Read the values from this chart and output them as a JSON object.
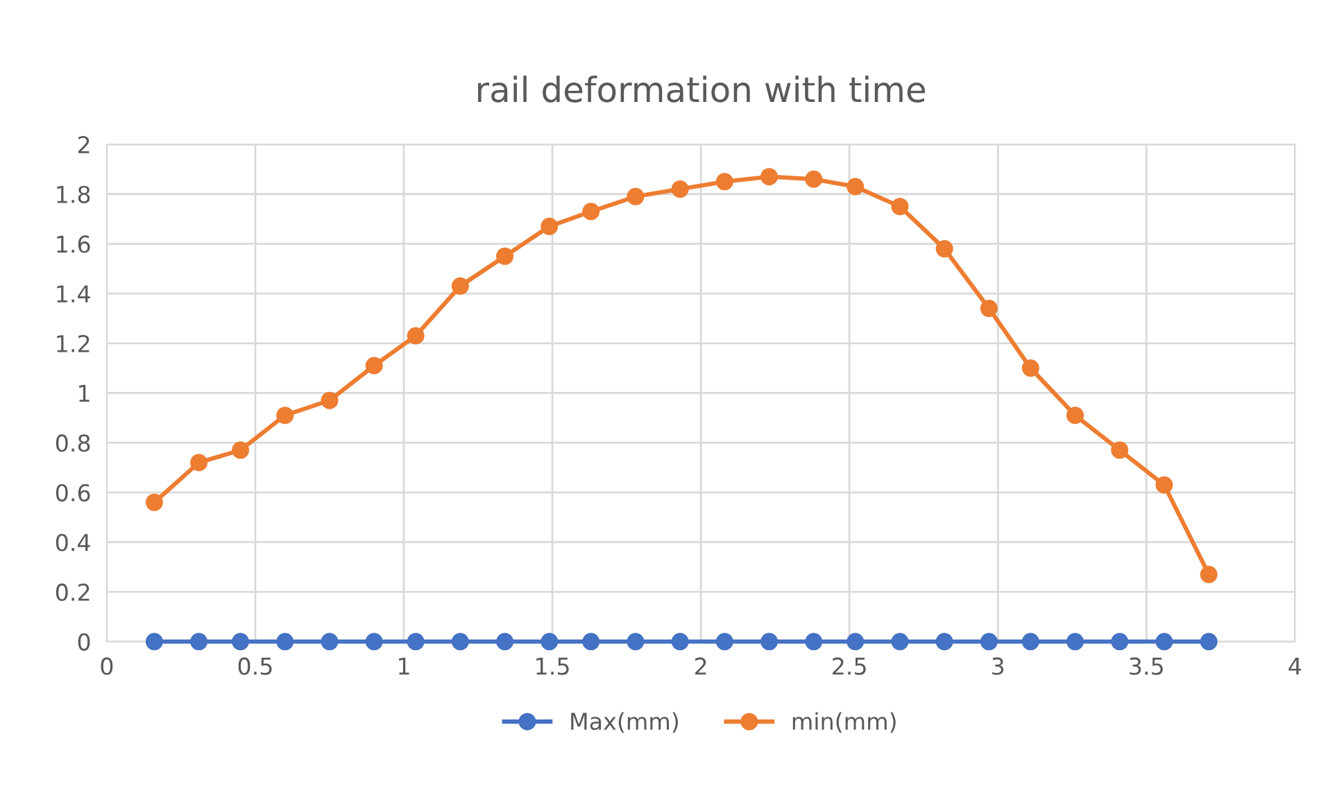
{
  "chart_data": {
    "type": "line",
    "title": "rail deformation with time",
    "x": [
      0.16,
      0.31,
      0.45,
      0.6,
      0.75,
      0.9,
      1.04,
      1.19,
      1.34,
      1.49,
      1.63,
      1.78,
      1.93,
      2.08,
      2.23,
      2.38,
      2.52,
      2.67,
      2.82,
      2.97,
      3.11,
      3.26,
      3.41,
      3.56,
      3.71
    ],
    "series": [
      {
        "name": "Max(mm)",
        "color": "#4472c4",
        "values": [
          0,
          0,
          0,
          0,
          0,
          0,
          0,
          0,
          0,
          0,
          0,
          0,
          0,
          0,
          0,
          0,
          0,
          0,
          0,
          0,
          0,
          0,
          0,
          0,
          0
        ]
      },
      {
        "name": "min(mm)",
        "color": "#ed7d31",
        "values": [
          0.56,
          0.72,
          0.77,
          0.91,
          0.97,
          1.11,
          1.23,
          1.43,
          1.55,
          1.67,
          1.73,
          1.79,
          1.82,
          1.85,
          1.87,
          1.86,
          1.83,
          1.75,
          1.58,
          1.34,
          1.1,
          0.91,
          0.77,
          0.63,
          0.27
        ]
      }
    ],
    "xlim": [
      0,
      4
    ],
    "xticks": [
      0,
      0.5,
      1,
      1.5,
      2,
      2.5,
      3,
      3.5,
      4
    ],
    "ylim": [
      0,
      2
    ],
    "yticks": [
      0,
      0.2,
      0.4,
      0.6,
      0.8,
      1,
      1.2,
      1.4,
      1.6,
      1.8,
      2
    ],
    "grid": true,
    "legend": "bottom",
    "marker": "circle",
    "line_style": "solid"
  }
}
